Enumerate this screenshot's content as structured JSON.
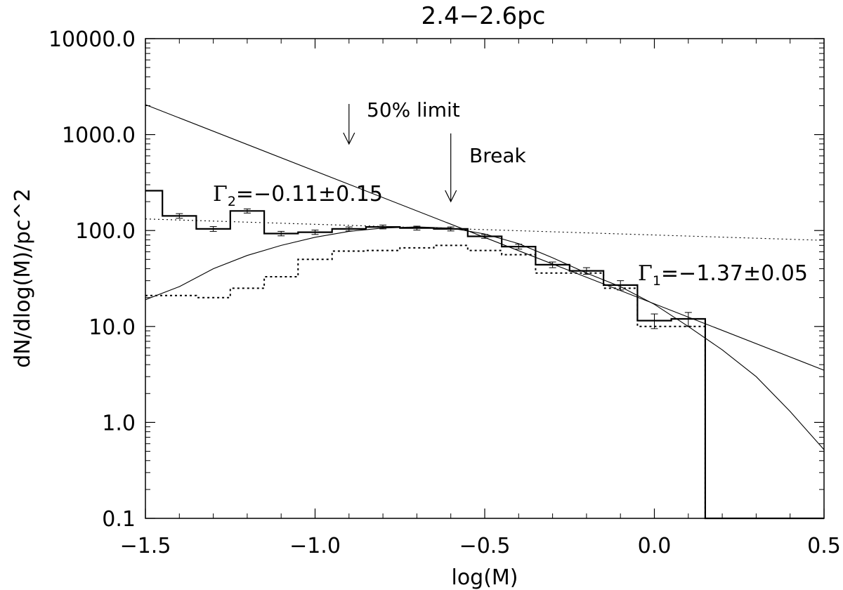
{
  "chart_data": {
    "type": "line",
    "title": "2.4−2.6pc",
    "xlabel": "log(M)",
    "ylabel": "dN/dlog(M)/pc^2",
    "xlim": [
      -1.5,
      0.5
    ],
    "ylim": [
      0.1,
      10000
    ],
    "yscale": "log",
    "grid": false,
    "x_ticks": [
      {
        "value": -1.5,
        "label": "−1.5"
      },
      {
        "value": -1.0,
        "label": "−1.0"
      },
      {
        "value": -0.5,
        "label": "−0.5"
      },
      {
        "value": 0.0,
        "label": "0.0"
      },
      {
        "value": 0.5,
        "label": "0.5"
      }
    ],
    "y_ticks": [
      {
        "value": 0.1,
        "label": "0.1"
      },
      {
        "value": 1,
        "label": "1.0"
      },
      {
        "value": 10,
        "label": "10.0"
      },
      {
        "value": 100,
        "label": "100.0"
      },
      {
        "value": 1000,
        "label": "1000.0"
      },
      {
        "value": 10000,
        "label": "10000.0"
      }
    ],
    "bin_edges": [
      -1.5,
      -1.45,
      -1.35,
      -1.25,
      -1.15,
      -1.05,
      -0.95,
      -0.85,
      -0.75,
      -0.65,
      -0.55,
      -0.45,
      -0.35,
      -0.25,
      -0.15,
      -0.05,
      0.05,
      0.15,
      0.25,
      0.35,
      0.45,
      0.5
    ],
    "series": [
      {
        "style": "histogram-solid",
        "values": [
          260,
          142,
          104,
          160,
          93,
          96,
          104,
          109,
          106,
          104,
          87,
          68,
          44,
          38,
          27,
          11.5,
          12,
          0.1,
          0.1,
          0.1,
          0.1
        ],
        "errors": [
          null,
          8,
          6,
          8,
          5,
          5,
          5,
          5,
          5,
          5,
          4,
          4,
          3,
          3,
          3,
          2,
          2,
          null,
          null,
          null,
          null
        ]
      },
      {
        "style": "histogram-dotted",
        "values": [
          21,
          21,
          20,
          25,
          33,
          50,
          61,
          62,
          66,
          70,
          62,
          56,
          36,
          36,
          25,
          10,
          10,
          0.1,
          0.1,
          0.1,
          0.1
        ]
      }
    ],
    "fits": [
      {
        "style": "solid-powerlaw",
        "points": [
          [
            -1.5,
            2050
          ],
          [
            0.5,
            3.5
          ]
        ]
      },
      {
        "style": "dotted-powerlaw",
        "points": [
          [
            -1.5,
            132
          ],
          [
            0.5,
            79
          ]
        ]
      },
      {
        "style": "solid-lognormal",
        "points": [
          [
            -1.5,
            19
          ],
          [
            -1.4,
            26
          ],
          [
            -1.3,
            40
          ],
          [
            -1.2,
            55
          ],
          [
            -1.1,
            70
          ],
          [
            -1.0,
            85
          ],
          [
            -0.9,
            98
          ],
          [
            -0.8,
            106
          ],
          [
            -0.7,
            109
          ],
          [
            -0.6,
            106
          ],
          [
            -0.5,
            92
          ],
          [
            -0.4,
            73
          ],
          [
            -0.3,
            52
          ],
          [
            -0.2,
            36
          ],
          [
            -0.1,
            26
          ],
          [
            0.0,
            17
          ],
          [
            0.1,
            10
          ],
          [
            0.2,
            5.7
          ],
          [
            0.3,
            3.0
          ],
          [
            0.4,
            1.3
          ],
          [
            0.5,
            0.52
          ]
        ]
      }
    ],
    "annotations": [
      {
        "label": "50% limit",
        "arrow_x": -0.9
      },
      {
        "label": "Break",
        "arrow_x": -0.6
      }
    ],
    "fit_labels": [
      {
        "symbol": "Γ",
        "sub": "2",
        "text": "=−0.11±0.15"
      },
      {
        "symbol": "Γ",
        "sub": "1",
        "text": "=−1.37±0.05"
      }
    ]
  }
}
